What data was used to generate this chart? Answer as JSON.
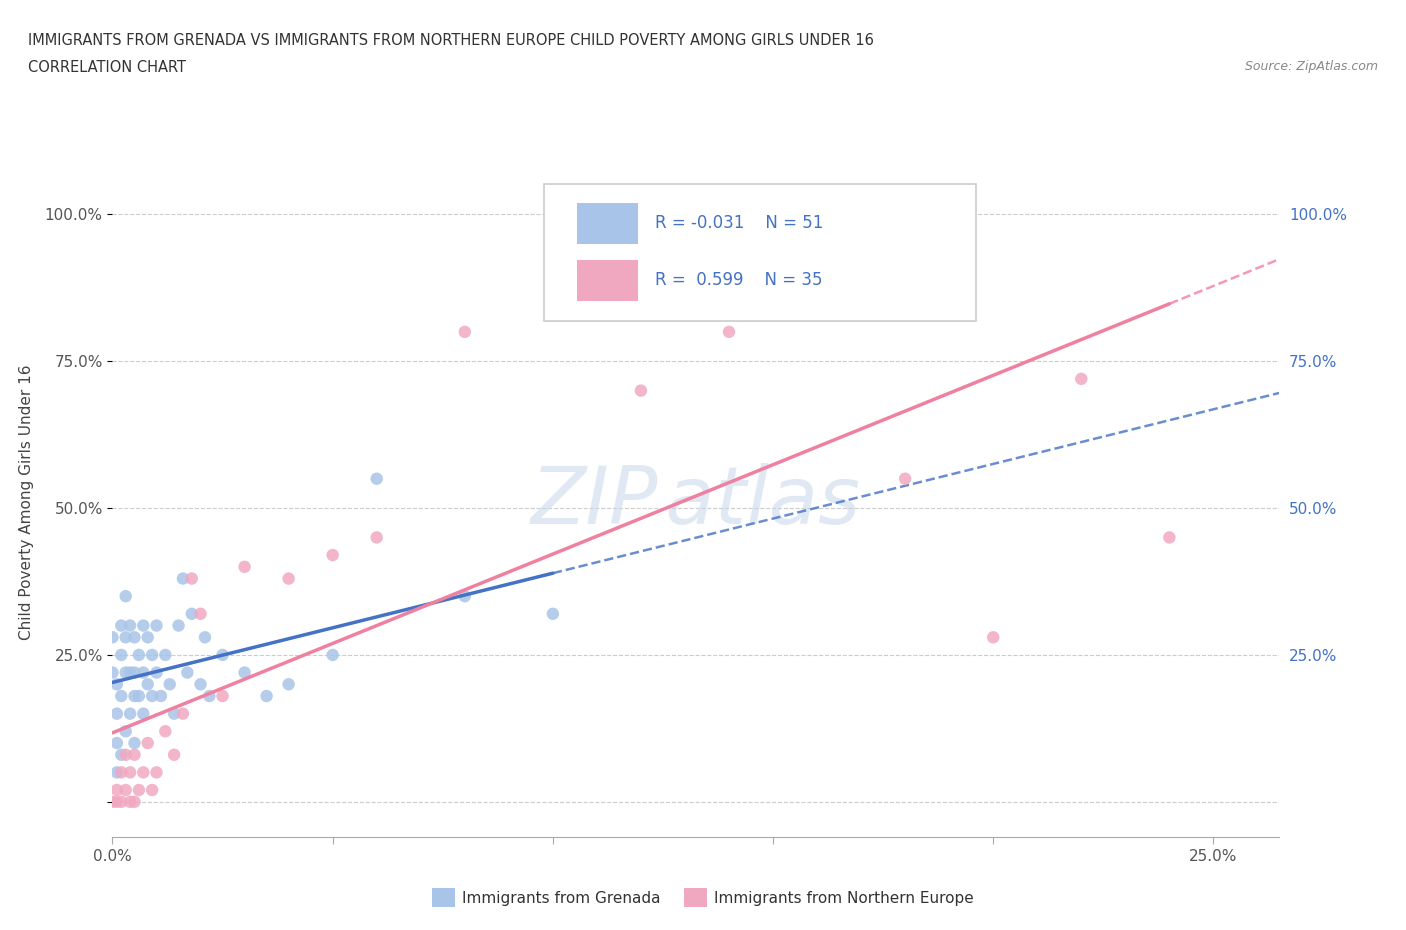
{
  "title": "IMMIGRANTS FROM GRENADA VS IMMIGRANTS FROM NORTHERN EUROPE CHILD POVERTY AMONG GIRLS UNDER 16",
  "subtitle": "CORRELATION CHART",
  "source": "Source: ZipAtlas.com",
  "ylabel": "Child Poverty Among Girls Under 16",
  "grenada_color": "#a8c4e8",
  "northern_europe_color": "#f0a8c0",
  "grenada_line_color": "#4472c4",
  "northern_europe_line_color": "#f080a0",
  "legend_text_color": "#4472c4",
  "grenada_R": -0.031,
  "grenada_N": 51,
  "northern_europe_R": 0.599,
  "northern_europe_N": 35,
  "xlim": [
    0.0,
    0.265
  ],
  "ylim": [
    -0.06,
    1.08
  ],
  "x_tick_positions": [
    0.0,
    0.05,
    0.1,
    0.15,
    0.2,
    0.25
  ],
  "x_tick_labels": [
    "0.0%",
    "",
    "",
    "",
    "",
    "25.0%"
  ],
  "y_tick_positions": [
    0.0,
    0.25,
    0.5,
    0.75,
    1.0
  ],
  "y_tick_labels": [
    "",
    "25.0%",
    "50.0%",
    "75.0%",
    "100.0%"
  ],
  "right_y_tick_labels": [
    "",
    "25.0%",
    "50.0%",
    "75.0%",
    "100.0%"
  ],
  "watermark": "ZIPAtlas",
  "grenada_x": [
    0.0,
    0.0,
    0.001,
    0.001,
    0.001,
    0.001,
    0.002,
    0.002,
    0.002,
    0.002,
    0.003,
    0.003,
    0.003,
    0.003,
    0.004,
    0.004,
    0.004,
    0.005,
    0.005,
    0.005,
    0.005,
    0.006,
    0.006,
    0.007,
    0.007,
    0.007,
    0.008,
    0.008,
    0.009,
    0.009,
    0.01,
    0.01,
    0.011,
    0.012,
    0.013,
    0.014,
    0.015,
    0.016,
    0.017,
    0.018,
    0.02,
    0.021,
    0.022,
    0.025,
    0.03,
    0.035,
    0.04,
    0.05,
    0.06,
    0.08,
    0.1
  ],
  "grenada_y": [
    0.28,
    0.22,
    0.2,
    0.15,
    0.1,
    0.05,
    0.3,
    0.25,
    0.18,
    0.08,
    0.35,
    0.28,
    0.22,
    0.12,
    0.3,
    0.22,
    0.15,
    0.28,
    0.22,
    0.18,
    0.1,
    0.25,
    0.18,
    0.3,
    0.22,
    0.15,
    0.28,
    0.2,
    0.25,
    0.18,
    0.3,
    0.22,
    0.18,
    0.25,
    0.2,
    0.15,
    0.3,
    0.38,
    0.22,
    0.32,
    0.2,
    0.28,
    0.18,
    0.25,
    0.22,
    0.18,
    0.2,
    0.25,
    0.55,
    0.35,
    0.32
  ],
  "northern_europe_x": [
    0.0,
    0.001,
    0.001,
    0.002,
    0.002,
    0.003,
    0.003,
    0.004,
    0.004,
    0.005,
    0.005,
    0.006,
    0.007,
    0.008,
    0.009,
    0.01,
    0.012,
    0.014,
    0.016,
    0.018,
    0.02,
    0.025,
    0.03,
    0.04,
    0.05,
    0.06,
    0.08,
    0.1,
    0.12,
    0.14,
    0.16,
    0.18,
    0.2,
    0.22,
    0.24
  ],
  "northern_europe_y": [
    0.0,
    0.0,
    0.02,
    0.0,
    0.05,
    0.02,
    0.08,
    0.0,
    0.05,
    0.0,
    0.08,
    0.02,
    0.05,
    0.1,
    0.02,
    0.05,
    0.12,
    0.08,
    0.15,
    0.38,
    0.32,
    0.18,
    0.4,
    0.38,
    0.42,
    0.45,
    0.8,
    1.0,
    0.7,
    0.8,
    0.85,
    0.55,
    0.28,
    0.72,
    0.45
  ]
}
